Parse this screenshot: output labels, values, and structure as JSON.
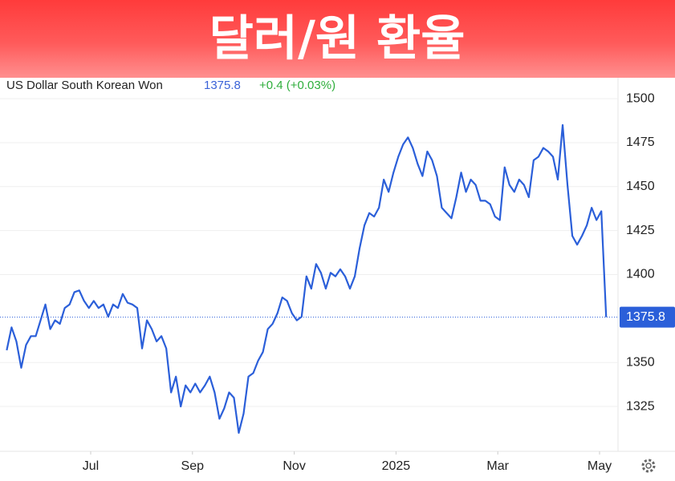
{
  "chart_data": {
    "type": "line",
    "title": "달러/원 환율",
    "series_label": "US Dollar South Korean Won",
    "change": "+0.4 (+0.03%)",
    "x": [
      5.35,
      5.445,
      5.54,
      5.635,
      5.73,
      5.825,
      5.92,
      6.015,
      6.11,
      6.205,
      6.3,
      6.395,
      6.49,
      6.585,
      6.68,
      6.775,
      6.87,
      6.965,
      7.06,
      7.155,
      7.25,
      7.345,
      7.44,
      7.535,
      7.63,
      7.725,
      7.82,
      7.915,
      8.01,
      8.105,
      8.2,
      8.295,
      8.39,
      8.485,
      8.58,
      8.675,
      8.77,
      8.865,
      8.96,
      9.055,
      9.15,
      9.245,
      9.34,
      9.435,
      9.53,
      9.625,
      9.72,
      9.815,
      9.91,
      10.005,
      10.1,
      10.195,
      10.29,
      10.385,
      10.48,
      10.575,
      10.67,
      10.765,
      10.86,
      10.955,
      11.05,
      11.145,
      11.24,
      11.335,
      11.43,
      11.525,
      11.62,
      11.715,
      11.81,
      11.905,
      12.0,
      12.095,
      12.19,
      12.285,
      12.38,
      12.475,
      12.57,
      12.665,
      12.76,
      12.855,
      12.95,
      13.045,
      13.14,
      13.235,
      13.33,
      13.425,
      13.52,
      13.615,
      13.71,
      13.805,
      13.9,
      13.995,
      14.09,
      14.185,
      14.28,
      14.375,
      14.47,
      14.565,
      14.66,
      14.755,
      14.85,
      14.945,
      15.04,
      15.135,
      15.23,
      15.325,
      15.42,
      15.515,
      15.61,
      15.705,
      15.8,
      15.895,
      15.99,
      16.085,
      16.18,
      16.275,
      16.37,
      16.465,
      16.56,
      16.655,
      16.75,
      16.845,
      16.94,
      17.035,
      17.13
    ],
    "series": [
      {
        "name": "US Dollar South Korean Won",
        "color": "#2b5fd9",
        "values": [
          1357,
          1370,
          1362,
          1347,
          1360,
          1365,
          1365,
          1374,
          1383,
          1369,
          1374,
          1372,
          1381,
          1383,
          1390,
          1391,
          1385,
          1381,
          1385,
          1381,
          1383,
          1376,
          1383,
          1381,
          1389,
          1384,
          1383,
          1381,
          1358,
          1374,
          1369,
          1362,
          1365,
          1358,
          1333,
          1342,
          1325,
          1337,
          1333,
          1338,
          1333,
          1337,
          1342,
          1333,
          1318,
          1324,
          1333,
          1330,
          1310,
          1321,
          1342,
          1344,
          1351,
          1356,
          1369,
          1372,
          1378,
          1387,
          1385,
          1378,
          1374,
          1376,
          1399,
          1392,
          1406,
          1401,
          1392,
          1401,
          1399,
          1403,
          1399,
          1392,
          1399,
          1415,
          1428,
          1435,
          1433,
          1438,
          1454,
          1447,
          1458,
          1467,
          1474,
          1478,
          1472,
          1463,
          1456,
          1470,
          1465,
          1456,
          1438,
          1435,
          1432,
          1444,
          1458,
          1447,
          1454,
          1451,
          1442,
          1442,
          1440,
          1433,
          1431,
          1461,
          1451,
          1447,
          1454,
          1451,
          1444,
          1465,
          1467,
          1472,
          1470,
          1467,
          1454,
          1485,
          1451,
          1422,
          1417,
          1422,
          1428,
          1438,
          1431,
          1436,
          1375.8
        ]
      }
    ],
    "xlim": [
      5.344,
      17.363
    ],
    "xticks": [
      {
        "value": 7,
        "label": "Jul"
      },
      {
        "value": 9,
        "label": "Sep"
      },
      {
        "value": 11,
        "label": "Nov"
      },
      {
        "value": 13,
        "label": "2025"
      },
      {
        "value": 15,
        "label": "Mar"
      },
      {
        "value": 17,
        "label": "May"
      }
    ],
    "ylim": [
      1299.5,
      1511.9
    ],
    "yticks": [
      1325,
      1350,
      1400,
      1425,
      1450,
      1475,
      1500
    ],
    "grid": true
  }
}
